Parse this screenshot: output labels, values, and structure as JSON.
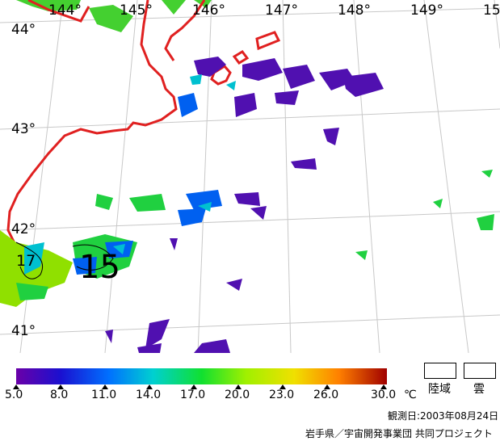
{
  "map": {
    "lon_labels": [
      "144°",
      "145°",
      "146°",
      "147°",
      "148°",
      "149°",
      "15"
    ],
    "lat_labels": [
      "44°",
      "43°",
      "42°",
      "41°"
    ],
    "contour_labels": [
      "17",
      "15"
    ]
  },
  "legend": {
    "ticks": [
      "5.0",
      "8.0",
      "11.0",
      "14.0",
      "17.0",
      "20.0",
      "23.0",
      "26.0",
      "30.0"
    ],
    "unit": "℃",
    "land_label": "陸域",
    "cloud_label": "雲",
    "colors": [
      "#6a00a8",
      "#1a10d0",
      "#0070ff",
      "#00d0d0",
      "#10e030",
      "#a0f000",
      "#f0e000",
      "#ff8000",
      "#a00000"
    ]
  },
  "footer": {
    "observation_date": "観測日:2003年08月24日",
    "credit": "岩手県／宇宙開発事業団  共同プロジェクト"
  }
}
